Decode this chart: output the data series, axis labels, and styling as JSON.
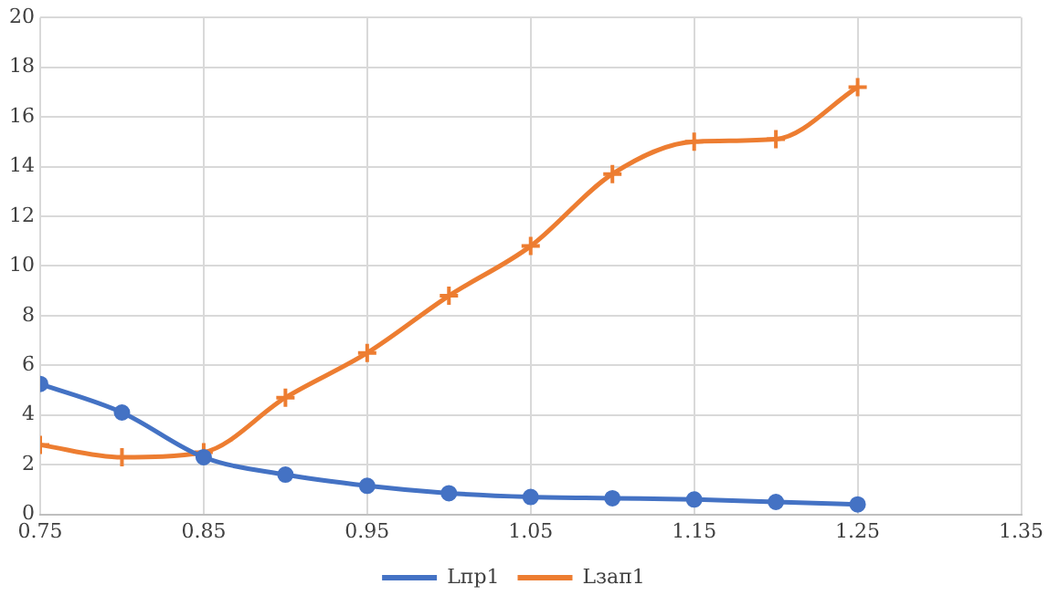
{
  "chart_data": {
    "type": "line",
    "x": [
      0.75,
      0.8,
      0.85,
      0.9,
      0.95,
      1.0,
      1.05,
      1.1,
      1.15,
      1.2,
      1.25
    ],
    "series": [
      {
        "name": "Lпр1",
        "color": "#4472c4",
        "marker": "circle",
        "values": [
          5.25,
          4.1,
          2.3,
          1.6,
          1.15,
          0.85,
          0.7,
          0.65,
          0.6,
          0.5,
          0.4
        ]
      },
      {
        "name": "Lзап1",
        "color": "#ed7d31",
        "marker": "cross",
        "values": [
          2.8,
          2.3,
          2.5,
          4.7,
          6.5,
          8.8,
          10.8,
          13.7,
          15.0,
          15.1,
          17.2
        ]
      }
    ],
    "xlim": [
      0.75,
      1.35
    ],
    "xticks": [
      {
        "value": 0.75,
        "label": "0.75"
      },
      0.85,
      0.95,
      1.05,
      1.15,
      1.25,
      1.35
    ],
    "ylim": [
      0,
      20
    ],
    "yticks": [
      0,
      2,
      4,
      6,
      8,
      10,
      12,
      14,
      16,
      18,
      20
    ],
    "grid": true,
    "legend": "bottom"
  }
}
